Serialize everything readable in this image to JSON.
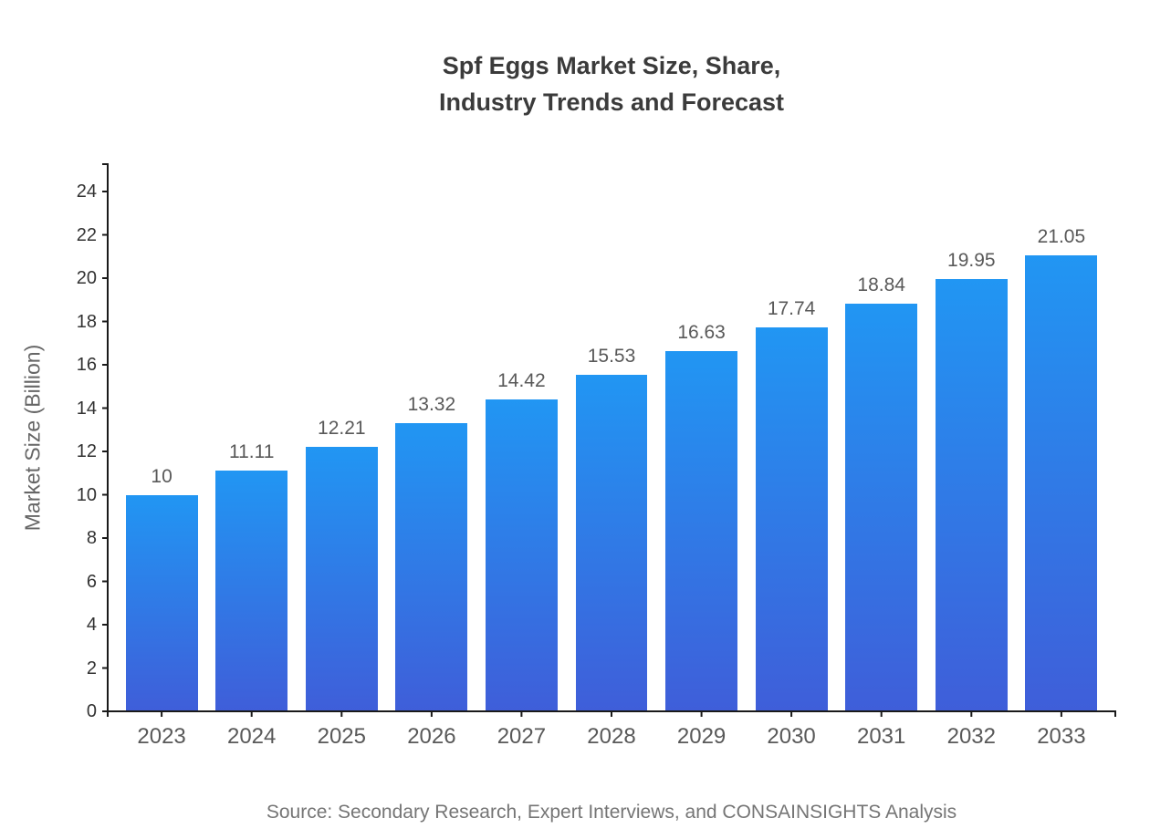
{
  "title": {
    "line1": "Spf Eggs Market Size, Share,",
    "line2": "Industry Trends and Forecast"
  },
  "source": "Source: Secondary Research, Expert Interviews, and CONSAINSIGHTS Analysis",
  "chart_data": {
    "type": "bar",
    "title": "Spf Eggs Market Size, Share, Industry Trends and Forecast",
    "categories": [
      "2023",
      "2024",
      "2025",
      "2026",
      "2027",
      "2028",
      "2029",
      "2030",
      "2031",
      "2032",
      "2033"
    ],
    "values": [
      10,
      11.11,
      12.21,
      13.32,
      14.42,
      15.53,
      16.63,
      17.74,
      18.84,
      19.95,
      21.05
    ],
    "value_labels": [
      "10",
      "11.11",
      "12.21",
      "13.32",
      "14.42",
      "15.53",
      "16.63",
      "17.74",
      "18.84",
      "19.95",
      "21.05"
    ],
    "xlabel": "",
    "ylabel": "Market Size (Billion)",
    "ylim": [
      0,
      25.3
    ],
    "y_ticks": [
      0,
      2,
      4,
      6,
      8,
      10,
      12,
      14,
      16,
      18,
      20,
      22,
      24
    ],
    "grid": false,
    "legend": false,
    "bar_gradient": {
      "top": "#2196f3",
      "bottom": "#3f5ed9"
    },
    "colors": {
      "axis": "#1a1a1a",
      "title": "#3b3b3b",
      "y_tick_label": "#333333",
      "x_tick_label": "#595959",
      "value_label": "#595959",
      "ylabel": "#666666",
      "source": "#757575"
    }
  }
}
